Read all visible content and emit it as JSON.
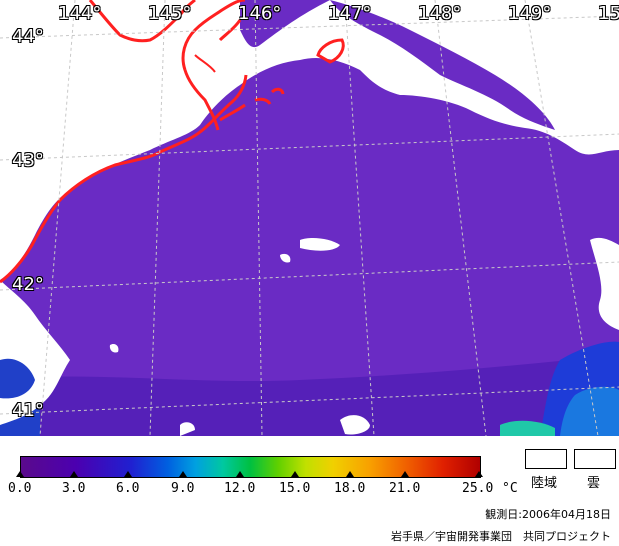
{
  "map": {
    "lon_labels": [
      "144°",
      "145°",
      "146°",
      "147°",
      "148°",
      "149°",
      "15"
    ],
    "lat_labels": [
      "44°",
      "43°",
      "42°",
      "41°"
    ],
    "colors": {
      "sea_dark": "#5a17b0",
      "sea": "#6a2bc4",
      "cloud": "#ffffff",
      "coast": "#ff2020",
      "warm_blue": "#1e3cd8",
      "warm_teal": "#20c8a8"
    }
  },
  "legend": {
    "tick_labels": [
      "0.0",
      "3.0",
      "6.0",
      "9.0",
      "12.0",
      "15.0",
      "18.0",
      "21.0",
      "25.0"
    ],
    "unit": "°C",
    "land_label": "陸域",
    "cloud_label": "雲",
    "observation_date": "観測日:2006年04月18日",
    "credit": "岩手県／宇宙開発事業団　共同プロジェクト"
  }
}
